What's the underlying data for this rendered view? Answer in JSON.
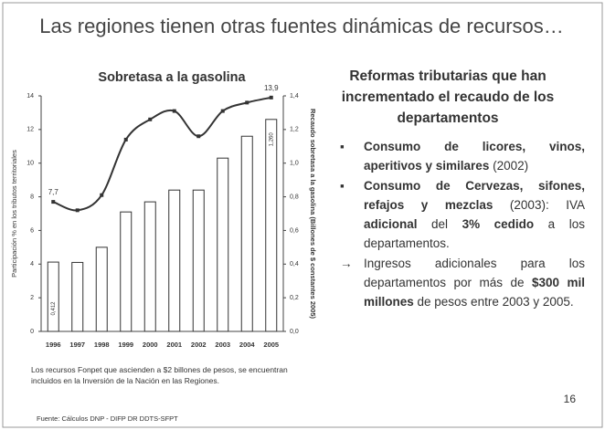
{
  "slide": {
    "title": "Las regiones tienen otras fuentes dinámicas de recursos…",
    "heading": "Reformas tributarias que han incrementado el recaudo de los departamentos",
    "bullets": [
      {
        "marker": "▪",
        "runs": [
          {
            "text": "Consumo de licores, vinos, aperitivos y similares",
            "bold": true
          },
          {
            "text": " (2002)",
            "bold": false
          }
        ]
      },
      {
        "marker": "▪",
        "runs": [
          {
            "text": "Consumo de Cervezas, sifones, refajos y mezclas",
            "bold": true
          },
          {
            "text": " (2003): IVA ",
            "bold": false
          },
          {
            "text": "adicional",
            "bold": true
          },
          {
            "text": " del ",
            "bold": false
          },
          {
            "text": "3% cedido",
            "bold": true
          },
          {
            "text": " a los departamentos.",
            "bold": false
          }
        ]
      },
      {
        "marker": "→",
        "runs": [
          {
            "text": "Ingresos adicionales para los departamentos por más de ",
            "bold": false
          },
          {
            "text": "$300 mil millones",
            "bold": true
          },
          {
            "text": " de pesos entre 2003 y 2005.",
            "bold": false
          }
        ]
      }
    ],
    "note": "Los recursos Fonpet que ascienden a $2 billones de pesos, se encuentran incluidos en la Inversión de la Nación en las Regiones.",
    "page_number": "16",
    "source": "Fuente: Cálculos DNP - DIFP DR DDTS-SFPT"
  },
  "chart_data": {
    "type": "combo",
    "title": "Sobretasa a la gasolina",
    "y_label": "Participación % en los tributos territoriales",
    "y2_label": "Recaudo sobretasa a la gasolina (Billones de $ constantes 2005)",
    "categories": [
      "1996",
      "1997",
      "1998",
      "1999",
      "2000",
      "2001",
      "2002",
      "2003",
      "2004",
      "2005"
    ],
    "ylim": [
      0,
      14
    ],
    "yticks": [
      0,
      2,
      4,
      6,
      8,
      10,
      12,
      14
    ],
    "y2lim": [
      0,
      1.4
    ],
    "y2ticks": [
      {
        "value": 0,
        "label": "0,0"
      },
      {
        "value": 0.2,
        "label": "0,2"
      },
      {
        "value": 0.4,
        "label": "0,4"
      },
      {
        "value": 0.6,
        "label": "0,6"
      },
      {
        "value": 0.8,
        "label": "0,8"
      },
      {
        "value": 1.0,
        "label": "1,0"
      },
      {
        "value": 1.2,
        "label": "1,2"
      },
      {
        "value": 1.4,
        "label": "1,4"
      }
    ],
    "series": [
      {
        "type": "bar",
        "axis": "y2",
        "color": "#ffffff",
        "values": [
          0.412,
          0.41,
          0.5,
          0.71,
          0.77,
          0.84,
          0.84,
          1.03,
          1.16,
          1.26
        ],
        "value_labels": [
          "0,412",
          null,
          null,
          null,
          null,
          null,
          null,
          null,
          null,
          "1,260"
        ]
      },
      {
        "type": "line",
        "axis": "y",
        "color": "#333333",
        "values": [
          7.7,
          7.2,
          8.1,
          11.4,
          12.6,
          13.1,
          11.6,
          13.1,
          13.6,
          13.9
        ],
        "value_labels": [
          "7,7",
          null,
          null,
          null,
          null,
          null,
          null,
          null,
          null,
          "13,9"
        ]
      }
    ]
  }
}
